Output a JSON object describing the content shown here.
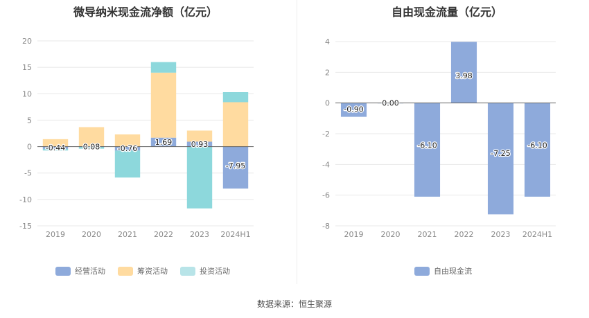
{
  "source": "数据来源：恒生聚源",
  "chart_data": [
    {
      "type": "bar",
      "stacked": true,
      "title": "微导纳米现金流净额（亿元）",
      "categories": [
        "2019",
        "2020",
        "2021",
        "2022",
        "2023",
        "2024H1"
      ],
      "ylim": [
        -15,
        20
      ],
      "yticks": [
        -15,
        -10,
        -5,
        0,
        5,
        10,
        15,
        20
      ],
      "grid": true,
      "legend_position": "bottom",
      "series": [
        {
          "name": "经营活动",
          "color": "#8eaadb",
          "values": [
            -0.44,
            0.08,
            -0.76,
            1.69,
            0.93,
            -7.95
          ],
          "labels": [
            "-0.44",
            "0.08",
            "-0.76",
            "1.69",
            "0.93",
            "-7.95"
          ]
        },
        {
          "name": "筹资活动",
          "color": "#ffdba0",
          "values": [
            1.4,
            3.6,
            2.3,
            12.3,
            2.1,
            8.4
          ]
        },
        {
          "name": "投资活动",
          "color": "#8dd8dc",
          "values": [
            -0.3,
            -0.4,
            -5.1,
            2.0,
            -11.7,
            1.9
          ]
        }
      ]
    },
    {
      "type": "bar",
      "title": "自由现金流量（亿元）",
      "categories": [
        "2019",
        "2020",
        "2021",
        "2022",
        "2023",
        "2024H1"
      ],
      "ylim": [
        -8,
        4
      ],
      "yticks": [
        -8,
        -6,
        -4,
        -2,
        0,
        2,
        4
      ],
      "grid": true,
      "legend_position": "bottom",
      "series": [
        {
          "name": "自由现金流",
          "color": "#8eaadb",
          "values": [
            -0.9,
            0.0,
            -6.1,
            3.98,
            -7.25,
            -6.1
          ],
          "labels": [
            "-0.90",
            "0.00",
            "-6.10",
            "3.98",
            "-7.25",
            "-6.10"
          ]
        }
      ]
    }
  ]
}
